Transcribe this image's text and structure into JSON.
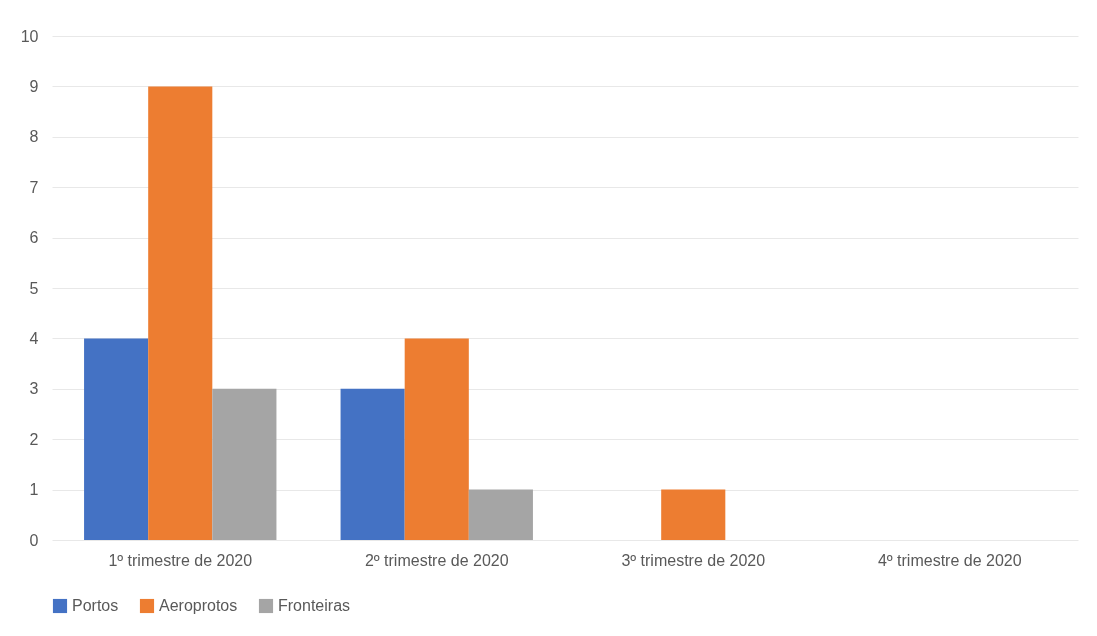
{
  "chart_data": {
    "type": "bar",
    "categories": [
      "1º trimestre de 2020",
      "2º trimestre de 2020",
      "3º trimestre de 2020",
      "4º trimestre de 2020"
    ],
    "series": [
      {
        "name": "Portos",
        "color": "#4472c4",
        "values": [
          4,
          3,
          0,
          0
        ]
      },
      {
        "name": "Aeroprotos",
        "color": "#ed7d31",
        "values": [
          9,
          4,
          1,
          0
        ]
      },
      {
        "name": "Fronteiras",
        "color": "#a5a5a5",
        "values": [
          3,
          1,
          0,
          0
        ]
      }
    ],
    "ylim": [
      0,
      10
    ],
    "yticks": [
      0,
      1,
      2,
      3,
      4,
      5,
      6,
      7,
      8,
      9,
      10
    ],
    "grid": "y",
    "legend": "bottom"
  }
}
